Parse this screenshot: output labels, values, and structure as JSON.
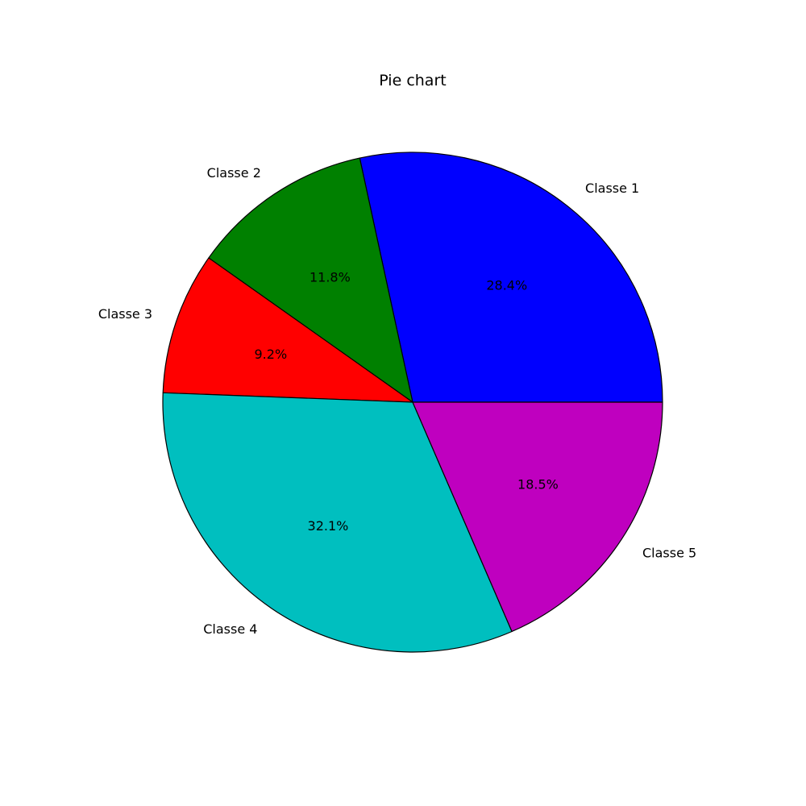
{
  "chart_data": {
    "type": "pie",
    "title": "Pie chart",
    "start_angle_deg": 0,
    "direction": "counterclockwise",
    "slices": [
      {
        "label": "Classe 1",
        "value": 28.4,
        "pct_label": "28.4%",
        "color": "#0000ff"
      },
      {
        "label": "Classe 2",
        "value": 11.8,
        "pct_label": "11.8%",
        "color": "#008000"
      },
      {
        "label": "Classe 3",
        "value": 9.2,
        "pct_label": "9.2%",
        "color": "#ff0000"
      },
      {
        "label": "Classe 4",
        "value": 32.1,
        "pct_label": "32.1%",
        "color": "#00bfbf"
      },
      {
        "label": "Classe 5",
        "value": 18.5,
        "pct_label": "18.5%",
        "color": "#bf00bf"
      }
    ]
  }
}
